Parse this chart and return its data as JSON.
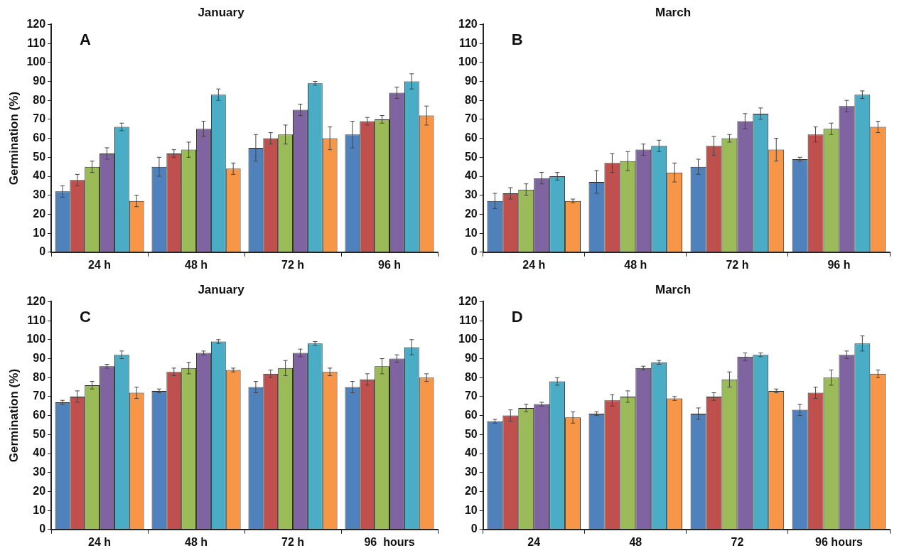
{
  "chart_data": [
    {
      "type": "bar",
      "title": "January",
      "ylabel": "Germination (%)",
      "annotations": [
        "A"
      ],
      "categories": [
        "24 h",
        "48 h",
        "72 h",
        "96 h"
      ],
      "ylim": [
        0,
        120
      ],
      "yticks": [
        0,
        10,
        20,
        30,
        40,
        50,
        60,
        70,
        80,
        90,
        100,
        110,
        120
      ],
      "grid": false,
      "legend": false,
      "series": [
        {
          "color": "#4f81bd",
          "values": [
            32,
            45,
            55,
            62
          ],
          "errors": [
            3,
            5,
            7,
            7
          ]
        },
        {
          "color": "#c0504d",
          "values": [
            38,
            52,
            60,
            69
          ],
          "errors": [
            3,
            2,
            3,
            2
          ]
        },
        {
          "color": "#9bbb59",
          "values": [
            45,
            54,
            62,
            70
          ],
          "errors": [
            3,
            4,
            5,
            2
          ]
        },
        {
          "color": "#8064a2",
          "values": [
            52,
            65,
            75,
            84
          ],
          "errors": [
            3,
            4,
            3,
            3
          ]
        },
        {
          "color": "#4bacc6",
          "values": [
            66,
            83,
            89,
            90
          ],
          "errors": [
            2,
            3,
            1,
            4
          ]
        },
        {
          "color": "#f79646",
          "values": [
            27,
            44,
            60,
            72
          ],
          "errors": [
            3,
            3,
            6,
            5
          ]
        }
      ]
    },
    {
      "type": "bar",
      "title": "March",
      "annotations": [
        "B"
      ],
      "categories": [
        "24 h",
        "48 h",
        "72 h",
        "96 h"
      ],
      "ylim": [
        0,
        120
      ],
      "yticks": [
        0,
        10,
        20,
        30,
        40,
        50,
        60,
        70,
        80,
        90,
        100,
        110,
        120
      ],
      "grid": false,
      "legend": false,
      "series": [
        {
          "color": "#4f81bd",
          "values": [
            27,
            37,
            45,
            49
          ],
          "errors": [
            4,
            6,
            4,
            1
          ]
        },
        {
          "color": "#c0504d",
          "values": [
            31,
            47,
            56,
            62
          ],
          "errors": [
            3,
            5,
            5,
            4
          ]
        },
        {
          "color": "#9bbb59",
          "values": [
            33,
            48,
            60,
            65
          ],
          "errors": [
            3,
            5,
            2,
            3
          ]
        },
        {
          "color": "#8064a2",
          "values": [
            39,
            54,
            69,
            77
          ],
          "errors": [
            3,
            3,
            4,
            3
          ]
        },
        {
          "color": "#4bacc6",
          "values": [
            40,
            56,
            73,
            83
          ],
          "errors": [
            2,
            3,
            3,
            2
          ]
        },
        {
          "color": "#f79646",
          "values": [
            27,
            42,
            54,
            66
          ],
          "errors": [
            1,
            5,
            6,
            3
          ]
        }
      ]
    },
    {
      "type": "bar",
      "title": "January",
      "ylabel": "Germination (%)",
      "annotations": [
        "C"
      ],
      "categories": [
        "24 h",
        "48 h",
        "72 h",
        "96  hours"
      ],
      "ylim": [
        0,
        120
      ],
      "yticks": [
        0,
        10,
        20,
        30,
        40,
        50,
        60,
        70,
        80,
        90,
        100,
        110,
        120
      ],
      "grid": false,
      "legend": false,
      "series": [
        {
          "color": "#4f81bd",
          "values": [
            67,
            73,
            75,
            75
          ],
          "errors": [
            1,
            1,
            3,
            3
          ]
        },
        {
          "color": "#c0504d",
          "values": [
            70,
            83,
            82,
            79
          ],
          "errors": [
            3,
            2,
            2,
            3
          ]
        },
        {
          "color": "#9bbb59",
          "values": [
            76,
            85,
            85,
            86
          ],
          "errors": [
            2,
            3,
            4,
            4
          ]
        },
        {
          "color": "#8064a2",
          "values": [
            86,
            93,
            93,
            90
          ],
          "errors": [
            1,
            1,
            2,
            2
          ]
        },
        {
          "color": "#4bacc6",
          "values": [
            92,
            99,
            98,
            96
          ],
          "errors": [
            2,
            1,
            1,
            4
          ]
        },
        {
          "color": "#f79646",
          "values": [
            72,
            84,
            83,
            80
          ],
          "errors": [
            3,
            1,
            2,
            2
          ]
        }
      ]
    },
    {
      "type": "bar",
      "title": "March",
      "annotations": [
        "D"
      ],
      "categories": [
        "24",
        "48",
        "72",
        "96 hours"
      ],
      "ylim": [
        0,
        120
      ],
      "yticks": [
        0,
        10,
        20,
        30,
        40,
        50,
        60,
        70,
        80,
        90,
        100,
        110,
        120
      ],
      "grid": false,
      "legend": false,
      "series": [
        {
          "color": "#4f81bd",
          "values": [
            57,
            61,
            61,
            63
          ],
          "errors": [
            1,
            1,
            3,
            3
          ]
        },
        {
          "color": "#c0504d",
          "values": [
            60,
            68,
            70,
            72
          ],
          "errors": [
            3,
            3,
            2,
            3
          ]
        },
        {
          "color": "#9bbb59",
          "values": [
            64,
            70,
            79,
            80
          ],
          "errors": [
            2,
            3,
            4,
            4
          ]
        },
        {
          "color": "#8064a2",
          "values": [
            66,
            85,
            91,
            92
          ],
          "errors": [
            1,
            1,
            2,
            2
          ]
        },
        {
          "color": "#4bacc6",
          "values": [
            78,
            88,
            92,
            98
          ],
          "errors": [
            2,
            1,
            1,
            4
          ]
        },
        {
          "color": "#f79646",
          "values": [
            59,
            69,
            73,
            82
          ],
          "errors": [
            3,
            1,
            1,
            2
          ]
        }
      ]
    }
  ]
}
